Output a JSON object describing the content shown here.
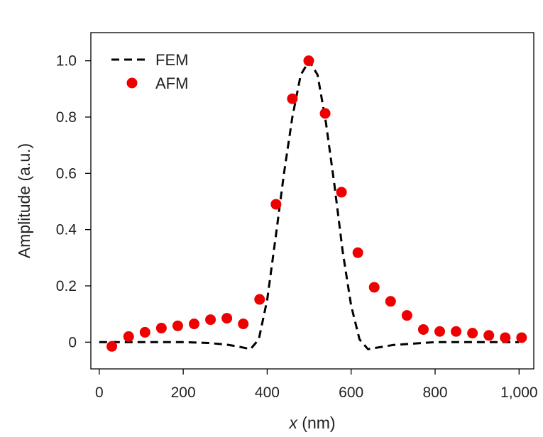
{
  "chart_data": {
    "type": "scatter",
    "title": "",
    "xlabel_var": "x",
    "xlabel_unit": " (nm)",
    "ylabel": "Amplitude (a.u.)",
    "xlim": [
      -20,
      1035
    ],
    "ylim": [
      -0.095,
      1.1
    ],
    "xticks": [
      0,
      200,
      400,
      600,
      800,
      1000
    ],
    "xtick_labels": [
      "0",
      "200",
      "400",
      "600",
      "800",
      "1,000"
    ],
    "yticks": [
      0,
      0.2,
      0.4,
      0.6,
      0.8,
      1.0
    ],
    "ytick_labels": [
      "0",
      "0.2",
      "0.4",
      "0.6",
      "0.8",
      "1.0"
    ],
    "grid": false,
    "legend_position": "top-left",
    "series": [
      {
        "name": "FEM",
        "kind": "line",
        "style": "dashed",
        "color": "#000000",
        "x": [
          0,
          100,
          200,
          260,
          300,
          330,
          360,
          380,
          400,
          420,
          440,
          460,
          480,
          500,
          520,
          540,
          560,
          580,
          600,
          620,
          640,
          700,
          800,
          900,
          1000
        ],
        "y": [
          0,
          0,
          0,
          -0.003,
          -0.008,
          -0.015,
          -0.025,
          0.01,
          0.15,
          0.37,
          0.6,
          0.8,
          0.95,
          1.0,
          0.95,
          0.78,
          0.56,
          0.32,
          0.13,
          0.01,
          -0.025,
          -0.01,
          0,
          0,
          0
        ]
      },
      {
        "name": "AFM",
        "kind": "scatter",
        "color": "#ee0000",
        "x": [
          30,
          70,
          109,
          148,
          187,
          226,
          265,
          304,
          343,
          382,
          421,
          460,
          499,
          538,
          577,
          616,
          655,
          694,
          733,
          772,
          811,
          850,
          889,
          928,
          967,
          1006
        ],
        "y": [
          -0.015,
          0.02,
          0.035,
          0.05,
          0.058,
          0.065,
          0.08,
          0.085,
          0.065,
          0.152,
          0.49,
          0.865,
          1.0,
          0.813,
          0.533,
          0.318,
          0.195,
          0.145,
          0.095,
          0.045,
          0.038,
          0.038,
          0.032,
          0.024,
          0.016,
          0.016
        ]
      }
    ]
  }
}
